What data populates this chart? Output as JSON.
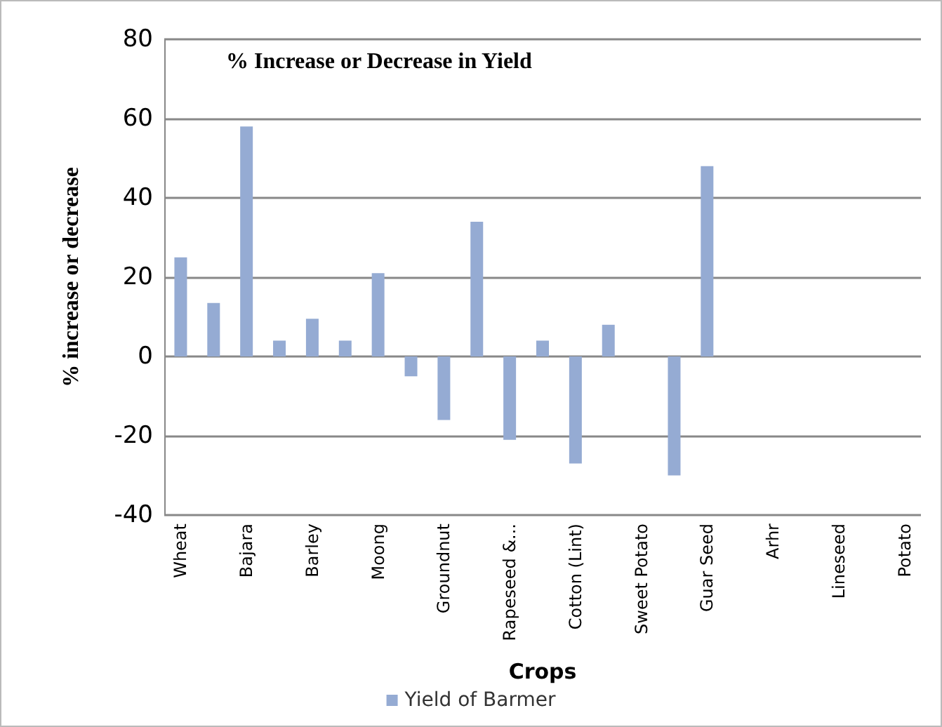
{
  "chart_data": {
    "type": "bar",
    "title": "% Increase or Decrease in Yield",
    "xlabel": "Crops",
    "ylabel": "% increase or decrease",
    "categories": [
      "Wheat",
      null,
      "Bajara",
      null,
      "Barley",
      null,
      "Moong",
      null,
      "Groundnut",
      null,
      "Rapeseed &...",
      null,
      "Cotton (Lint)",
      null,
      "Sweet Potato",
      null,
      "Guar Seed",
      null,
      "Arhr",
      null,
      "Lineseed",
      null,
      "Potato"
    ],
    "series": [
      {
        "name": "Yield of Barmer",
        "color": "#95abd3",
        "values": [
          25,
          13.5,
          58,
          4,
          9.5,
          4,
          21,
          -5,
          -16,
          34,
          -21,
          4,
          -27,
          8,
          null,
          -30,
          48,
          null,
          null,
          null,
          null,
          null,
          null
        ]
      }
    ],
    "ylim": [
      -40,
      80
    ],
    "yticks": [
      -40,
      -20,
      0,
      20,
      40,
      60,
      80
    ],
    "grid": "y",
    "legend": "bottom"
  }
}
